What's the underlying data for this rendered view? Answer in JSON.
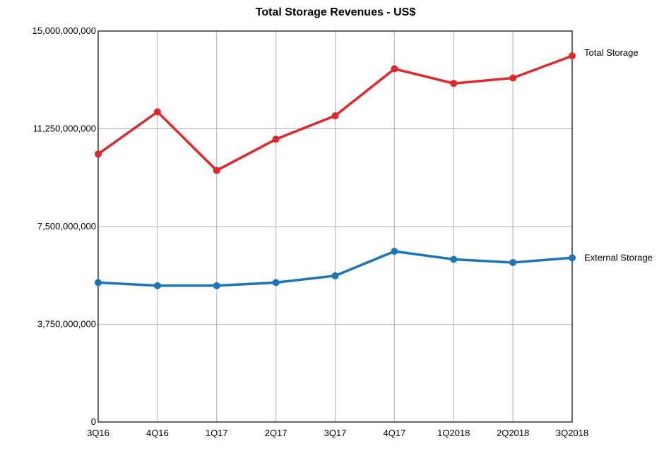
{
  "chart_data": {
    "type": "line",
    "title": "Total Storage Revenues - US$",
    "xlabel": "",
    "ylabel": "",
    "categories": [
      "3Q16",
      "4Q16",
      "1Q17",
      "2Q17",
      "3Q17",
      "4Q17",
      "1Q2018",
      "2Q2018",
      "3Q2018"
    ],
    "ylim": [
      0,
      15000000000
    ],
    "yticks": [
      0,
      3750000000,
      7500000000,
      11250000000,
      15000000000
    ],
    "ytick_labels": [
      "0",
      "3,750,000,000",
      "7,500,000,000",
      "11,250,000,000",
      "15,000,000,000"
    ],
    "grid": true,
    "series": [
      {
        "name": "Total Storage",
        "color": "#e0282a",
        "values": [
          10280000000,
          11900000000,
          9650000000,
          10850000000,
          11750000000,
          13550000000,
          12990000000,
          13200000000,
          14050000000
        ]
      },
      {
        "name": "External Storage",
        "color": "#1c75b6",
        "values": [
          5350000000,
          5230000000,
          5230000000,
          5350000000,
          5610000000,
          6550000000,
          6240000000,
          6120000000,
          6300000000
        ]
      }
    ]
  }
}
